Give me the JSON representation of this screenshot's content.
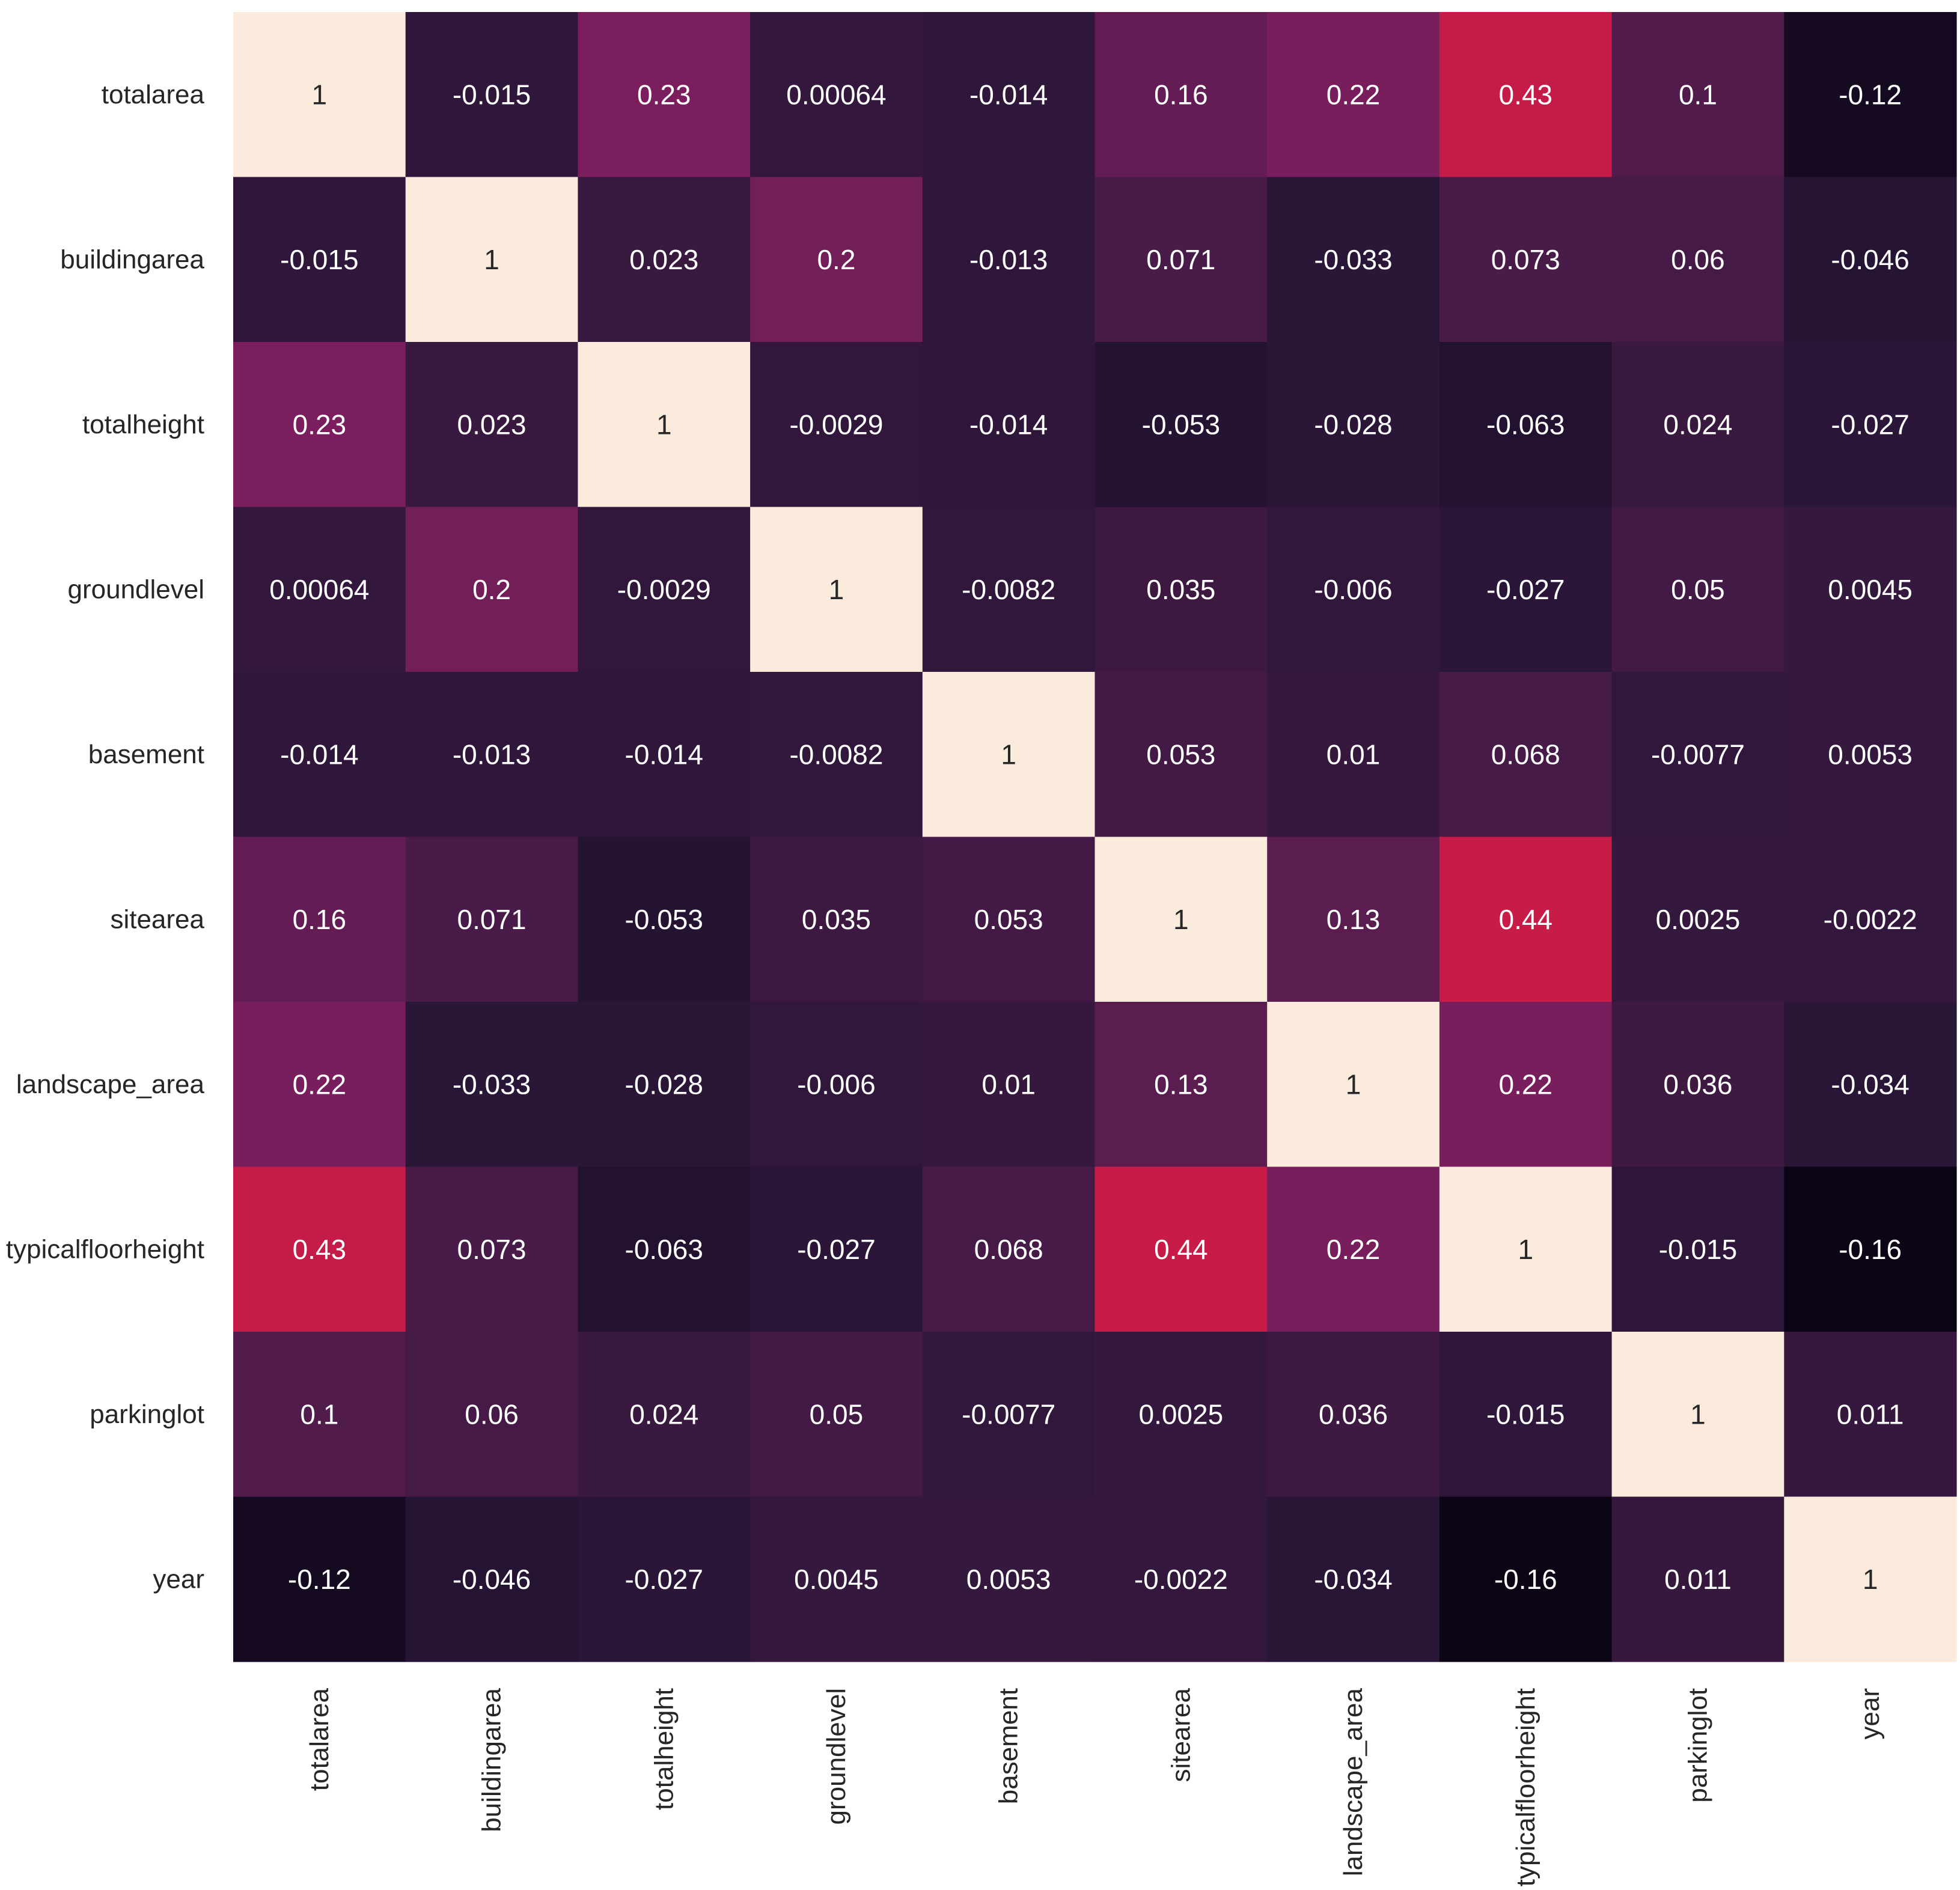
{
  "chart_data": {
    "type": "heatmap",
    "title": "",
    "xlabel": "",
    "ylabel": "",
    "colormap": "rocket",
    "vmin": -0.16,
    "vmax": 1,
    "colorbar": false,
    "grid": false,
    "labels": [
      "totalarea",
      "buildingarea",
      "totalheight",
      "groundlevel",
      "basement",
      "sitearea",
      "landscape_area",
      "typicalfloorheight",
      "parkinglot",
      "year"
    ],
    "values": [
      [
        1,
        -0.015,
        0.23,
        0.00064,
        -0.014,
        0.16,
        0.22,
        0.43,
        0.1,
        -0.12
      ],
      [
        -0.015,
        1,
        0.023,
        0.2,
        -0.013,
        0.071,
        -0.033,
        0.073,
        0.06,
        -0.046
      ],
      [
        0.23,
        0.023,
        1,
        -0.0029,
        -0.014,
        -0.053,
        -0.028,
        -0.063,
        0.024,
        -0.027
      ],
      [
        0.00064,
        0.2,
        -0.0029,
        1,
        -0.0082,
        0.035,
        -0.006,
        -0.027,
        0.05,
        0.0045
      ],
      [
        -0.014,
        -0.013,
        -0.014,
        -0.0082,
        1,
        0.053,
        0.01,
        0.068,
        -0.0077,
        0.0053
      ],
      [
        0.16,
        0.071,
        -0.053,
        0.035,
        0.053,
        1,
        0.13,
        0.44,
        0.0025,
        -0.0022
      ],
      [
        0.22,
        -0.033,
        -0.028,
        -0.006,
        0.01,
        0.13,
        1,
        0.22,
        0.036,
        -0.034
      ],
      [
        0.43,
        0.073,
        -0.063,
        -0.027,
        0.068,
        0.44,
        0.22,
        1,
        -0.015,
        -0.16
      ],
      [
        0.1,
        0.06,
        0.024,
        0.05,
        -0.0077,
        0.0025,
        0.036,
        -0.015,
        1,
        0.011
      ],
      [
        -0.12,
        -0.046,
        -0.027,
        0.0045,
        0.0053,
        -0.0022,
        -0.034,
        -0.16,
        0.011,
        1
      ]
    ],
    "value_labels": [
      [
        "1",
        "-0.015",
        "0.23",
        "0.00064",
        "-0.014",
        "0.16",
        "0.22",
        "0.43",
        "0.1",
        "-0.12"
      ],
      [
        "-0.015",
        "1",
        "0.023",
        "0.2",
        "-0.013",
        "0.071",
        "-0.033",
        "0.073",
        "0.06",
        "-0.046"
      ],
      [
        "0.23",
        "0.023",
        "1",
        "-0.0029",
        "-0.014",
        "-0.053",
        "-0.028",
        "-0.063",
        "0.024",
        "-0.027"
      ],
      [
        "0.00064",
        "0.2",
        "-0.0029",
        "1",
        "-0.0082",
        "0.035",
        "-0.006",
        "-0.027",
        "0.05",
        "0.0045"
      ],
      [
        "-0.014",
        "-0.013",
        "-0.014",
        "-0.0082",
        "1",
        "0.053",
        "0.01",
        "0.068",
        "-0.0077",
        "0.0053"
      ],
      [
        "0.16",
        "0.071",
        "-0.053",
        "0.035",
        "0.053",
        "1",
        "0.13",
        "0.44",
        "0.0025",
        "-0.0022"
      ],
      [
        "0.22",
        "-0.033",
        "-0.028",
        "-0.006",
        "0.01",
        "0.13",
        "1",
        "0.22",
        "0.036",
        "-0.034"
      ],
      [
        "0.43",
        "0.073",
        "-0.063",
        "-0.027",
        "0.068",
        "0.44",
        "0.22",
        "1",
        "-0.015",
        "-0.16"
      ],
      [
        "0.1",
        "0.06",
        "0.024",
        "0.05",
        "-0.0077",
        "0.0025",
        "0.036",
        "-0.015",
        "1",
        "0.011"
      ],
      [
        "-0.12",
        "-0.046",
        "-0.027",
        "0.0045",
        "0.0053",
        "-0.0022",
        "-0.034",
        "-0.16",
        "0.011",
        "1"
      ]
    ]
  },
  "colors": {
    "background": "#ffffff",
    "tick_text": "#262626",
    "cell_text_on_dark": "#ffffff",
    "cell_text_on_light": "#262626",
    "rocket_stops": [
      "#0b0515",
      "#2a1638",
      "#501c4c",
      "#7a1e5d",
      "#a8194f",
      "#d81d43",
      "#f0552c",
      "#f79868",
      "#f7c9a8",
      "#faebdd"
    ]
  }
}
